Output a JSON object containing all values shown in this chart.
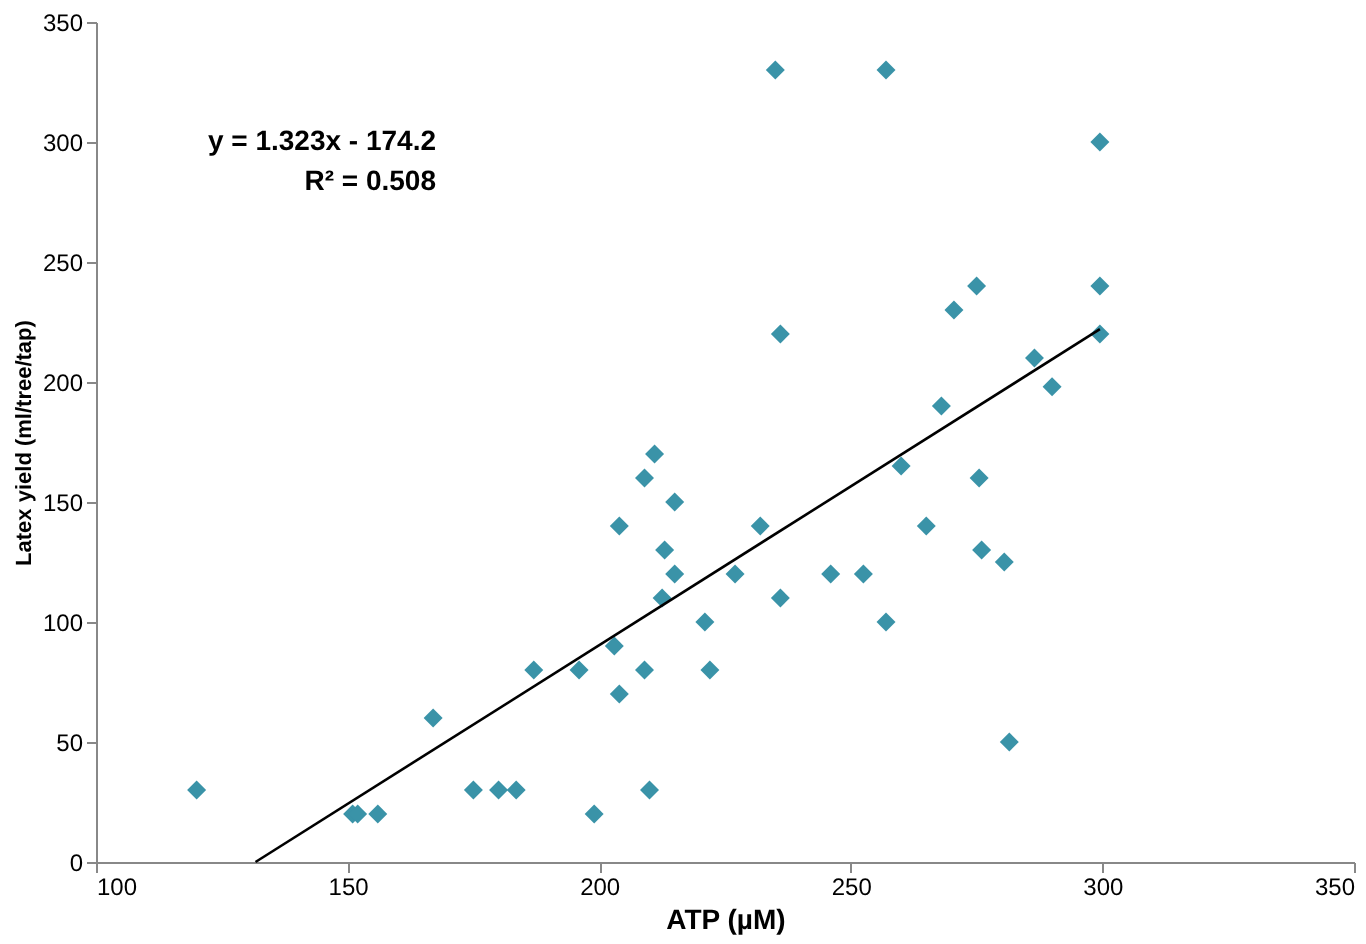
{
  "chart_data": {
    "type": "scatter",
    "xlabel": "ATP (µM)",
    "ylabel": "Latex yield (ml/tree/tap)",
    "xlim": [
      100,
      350
    ],
    "xticks": [
      100,
      150,
      200,
      250,
      300,
      350
    ],
    "ylim": [
      0,
      350
    ],
    "yticks": [
      0,
      50,
      100,
      150,
      200,
      250,
      300,
      350
    ],
    "grid": false,
    "marker": "diamond",
    "annotations": [
      "y = 1.323x - 174.2",
      "R² = 0.508"
    ],
    "series": [
      {
        "color": "#3a93a8",
        "x": [
          120,
          151,
          152,
          156,
          167,
          175,
          180,
          183.5,
          187,
          196,
          199,
          210,
          204,
          209,
          203,
          222,
          221,
          212.5,
          215,
          213,
          204,
          209,
          211,
          215,
          227,
          232,
          236,
          236,
          246,
          252.5,
          257,
          260,
          265,
          268,
          275.5,
          276,
          280.5,
          281.5,
          270.5,
          275,
          286.5,
          290,
          299.5,
          299.5,
          299.5,
          235,
          257
        ],
        "values": [
          30,
          20,
          20,
          20,
          60,
          30,
          30,
          30,
          80,
          80,
          20,
          30,
          70,
          80,
          90,
          80,
          100,
          110,
          120,
          130,
          140,
          160,
          170,
          150,
          120,
          140,
          110,
          220,
          120,
          120,
          100,
          165,
          140,
          190,
          160,
          130,
          125,
          50,
          230,
          240,
          210,
          198,
          220,
          240,
          300,
          330,
          330
        ]
      },
      {
        "type": "line",
        "marker": "none",
        "color": "#000000",
        "x": [
          131.7,
          299.5
        ],
        "values": [
          0,
          222
        ]
      }
    ]
  }
}
